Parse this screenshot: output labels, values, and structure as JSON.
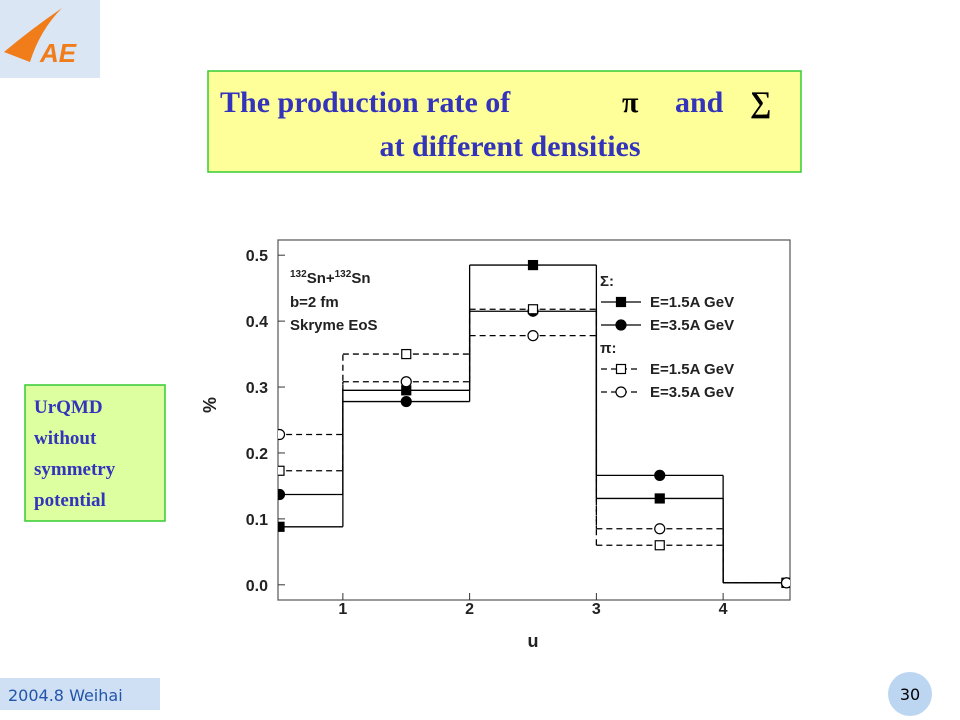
{
  "logo": "AE",
  "title": {
    "line1": "The production rate of",
    "symbol1": "π",
    "joiner": "and",
    "symbol2": "∑",
    "line2": "at different densities"
  },
  "note": {
    "lines": [
      "UrQMD",
      "without",
      "symmetry",
      "potential"
    ]
  },
  "footer": {
    "date_place": "2004.8 Weihai",
    "page": "30"
  },
  "chart_data": {
    "type": "step",
    "xlabel": "u",
    "ylabel": "%",
    "system": [
      "132",
      "Sn+",
      "132",
      "Sn"
    ],
    "annotations": [
      "b=2 fm",
      "Skryme EoS"
    ],
    "legend_titles": [
      "Σ:",
      "π:"
    ],
    "bins": [
      0,
      1,
      2,
      3,
      4,
      5
    ],
    "x": [
      0.5,
      1.5,
      2.5,
      3.5,
      4.5
    ],
    "series": [
      {
        "name": "E=1.5A GeV",
        "color": "#000000",
        "marker": "square",
        "filled": true,
        "dashed": false,
        "values": [
          0.088,
          0.295,
          0.485,
          0.131,
          0.003
        ]
      },
      {
        "name": "E=3.5A GeV",
        "color": "#000000",
        "marker": "circle",
        "filled": true,
        "dashed": false,
        "values": [
          0.137,
          0.278,
          0.415,
          0.166,
          0.003
        ]
      },
      {
        "name": "E=1.5A GeV",
        "color": "#000000",
        "marker": "square",
        "filled": false,
        "dashed": true,
        "values": [
          0.173,
          0.35,
          0.418,
          0.06,
          0.003
        ]
      },
      {
        "name": "E=3.5A GeV",
        "color": "#000000",
        "marker": "circle",
        "filled": false,
        "dashed": true,
        "values": [
          0.228,
          0.308,
          0.378,
          0.085,
          0.003
        ]
      }
    ],
    "xlim": [
      0.5,
      4.5
    ],
    "ylim": [
      -0.02,
      0.52
    ],
    "xticks": [
      1,
      2,
      3,
      4
    ],
    "yticks": [
      {
        "value": 0,
        "label": "0.0"
      },
      0.1,
      0.2,
      0.3,
      0.4,
      0.5
    ]
  }
}
